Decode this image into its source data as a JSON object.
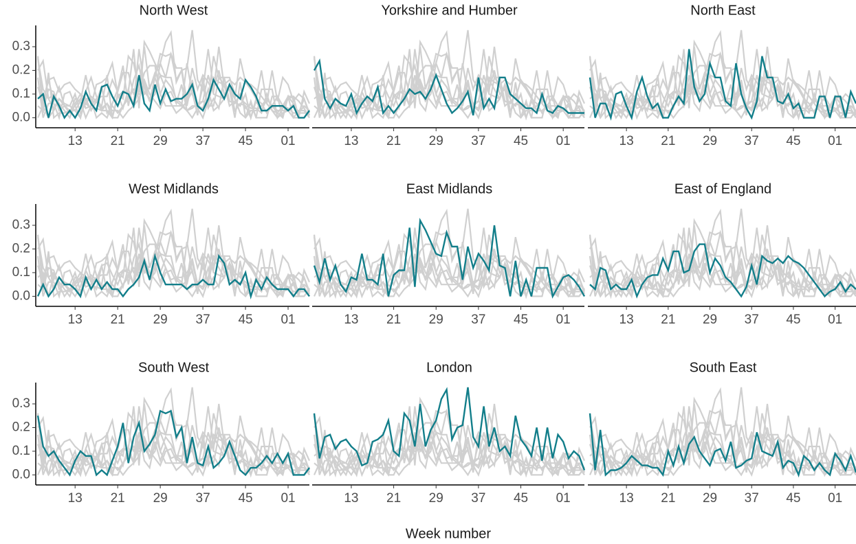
{
  "chart_data": {
    "type": "line",
    "x_label": "Week number",
    "categories": [
      null,
      null,
      null,
      null,
      null,
      null,
      null,
      "13",
      null,
      null,
      null,
      null,
      null,
      null,
      null,
      "21",
      null,
      null,
      null,
      null,
      null,
      null,
      null,
      "29",
      null,
      null,
      null,
      null,
      null,
      null,
      null,
      "37",
      null,
      null,
      null,
      null,
      null,
      null,
      null,
      "45",
      null,
      null,
      null,
      null,
      null,
      null,
      null,
      "01",
      null,
      null,
      null,
      null
    ],
    "ylim": [
      -0.025,
      0.39
    ],
    "yticks": [
      {
        "value": 0,
        "label": "0.0"
      },
      0.1,
      0.2,
      0.3
    ],
    "color": "#d0d0d0",
    "highlight_color": "#127e8a",
    "series": [
      {
        "name": "North West",
        "values": [
          0.08,
          0.1,
          0.0,
          0.09,
          0.05,
          0.0,
          0.03,
          0.0,
          0.04,
          0.11,
          0.06,
          0.03,
          0.13,
          0.14,
          0.09,
          0.05,
          0.11,
          0.1,
          0.05,
          0.18,
          0.06,
          0.03,
          0.14,
          0.06,
          0.12,
          0.07,
          0.08,
          0.08,
          0.1,
          0.14,
          0.05,
          0.03,
          0.08,
          0.16,
          0.12,
          0.08,
          0.14,
          0.1,
          0.08,
          0.16,
          0.13,
          0.09,
          0.03,
          0.03,
          0.05,
          0.05,
          0.05,
          0.03,
          0.05,
          0.0,
          0.0,
          0.03
        ]
      },
      {
        "name": "Yorkshire and Humber",
        "values": [
          0.2,
          0.24,
          0.08,
          0.04,
          0.08,
          0.06,
          0.05,
          0.1,
          0.02,
          0.06,
          0.09,
          0.07,
          0.13,
          0.02,
          0.05,
          0.02,
          0.05,
          0.08,
          0.12,
          0.1,
          0.11,
          0.08,
          0.12,
          0.18,
          0.12,
          0.06,
          0.02,
          0.04,
          0.07,
          0.11,
          0.01,
          0.17,
          0.04,
          0.08,
          0.04,
          0.17,
          0.17,
          0.1,
          0.08,
          0.06,
          0.04,
          0.04,
          0.02,
          0.1,
          0.03,
          0.02,
          0.05,
          0.04,
          0.02,
          0.02,
          0.02,
          0.02
        ]
      },
      {
        "name": "North East",
        "values": [
          0.17,
          0.0,
          0.06,
          0.06,
          0.0,
          0.1,
          0.11,
          0.05,
          0.0,
          0.11,
          0.17,
          0.09,
          0.04,
          0.06,
          0.0,
          0.0,
          0.05,
          0.09,
          0.06,
          0.29,
          0.13,
          0.07,
          0.1,
          0.23,
          0.17,
          0.17,
          0.07,
          0.05,
          0.23,
          0.1,
          0.04,
          0.0,
          0.07,
          0.26,
          0.17,
          0.17,
          0.07,
          0.06,
          0.1,
          0.04,
          0.06,
          0.0,
          0.0,
          0.0,
          0.09,
          0.09,
          0.0,
          0.09,
          0.09,
          0.0,
          0.11,
          0.06
        ]
      },
      {
        "name": "West Midlands",
        "values": [
          0.0,
          0.05,
          0.0,
          0.03,
          0.08,
          0.05,
          0.05,
          0.03,
          0.0,
          0.08,
          0.03,
          0.07,
          0.03,
          0.06,
          0.03,
          0.03,
          0.0,
          0.03,
          0.05,
          0.08,
          0.15,
          0.07,
          0.17,
          0.1,
          0.05,
          0.05,
          0.05,
          0.05,
          0.03,
          0.05,
          0.05,
          0.07,
          0.05,
          0.05,
          0.17,
          0.14,
          0.05,
          0.07,
          0.05,
          0.1,
          0.0,
          0.07,
          0.03,
          0.08,
          0.05,
          0.03,
          0.03,
          0.03,
          0.0,
          0.03,
          0.03,
          0.0
        ]
      },
      {
        "name": "East Midlands",
        "values": [
          0.13,
          0.06,
          0.16,
          0.07,
          0.13,
          0.05,
          0.02,
          0.08,
          0.07,
          0.18,
          0.07,
          0.07,
          0.05,
          0.18,
          0.0,
          0.09,
          0.11,
          0.11,
          0.29,
          0.04,
          0.32,
          0.28,
          0.23,
          0.18,
          0.17,
          0.27,
          0.21,
          0.21,
          0.07,
          0.21,
          0.12,
          0.18,
          0.15,
          0.11,
          0.3,
          0.13,
          0.12,
          0.0,
          0.15,
          0.0,
          0.07,
          0.0,
          0.12,
          0.12,
          0.12,
          0.0,
          0.04,
          0.08,
          0.09,
          0.07,
          0.04,
          0.0
        ]
      },
      {
        "name": "East of England",
        "values": [
          0.05,
          0.03,
          0.12,
          0.11,
          0.03,
          0.05,
          0.03,
          0.03,
          0.07,
          0.0,
          0.05,
          0.08,
          0.09,
          0.09,
          0.16,
          0.11,
          0.19,
          0.19,
          0.1,
          0.11,
          0.19,
          0.22,
          0.22,
          0.1,
          0.16,
          0.13,
          0.08,
          0.06,
          0.03,
          0.0,
          0.04,
          0.13,
          0.05,
          0.17,
          0.15,
          0.14,
          0.16,
          0.14,
          0.17,
          0.15,
          0.14,
          0.12,
          0.09,
          0.06,
          0.03,
          0.0,
          0.02,
          0.03,
          0.06,
          0.02,
          0.05,
          0.03
        ]
      },
      {
        "name": "South West",
        "values": [
          0.25,
          0.12,
          0.08,
          0.1,
          0.06,
          0.03,
          0.0,
          0.06,
          0.1,
          0.08,
          0.08,
          0.0,
          0.02,
          0.0,
          0.06,
          0.12,
          0.22,
          0.05,
          0.16,
          0.22,
          0.1,
          0.13,
          0.17,
          0.27,
          0.26,
          0.27,
          0.16,
          0.2,
          0.05,
          0.16,
          0.05,
          0.04,
          0.12,
          0.03,
          0.05,
          0.08,
          0.14,
          0.08,
          0.02,
          0.0,
          0.03,
          0.03,
          0.05,
          0.08,
          0.05,
          0.09,
          0.05,
          0.09,
          0.0,
          0.0,
          0.0,
          0.03
        ]
      },
      {
        "name": "London",
        "values": [
          0.26,
          0.07,
          0.16,
          0.17,
          0.11,
          0.14,
          0.15,
          0.12,
          0.1,
          0.04,
          0.05,
          0.14,
          0.15,
          0.17,
          0.23,
          0.1,
          0.08,
          0.26,
          0.23,
          0.12,
          0.3,
          0.12,
          0.19,
          0.23,
          0.32,
          0.36,
          0.15,
          0.2,
          0.21,
          0.37,
          0.16,
          0.12,
          0.29,
          0.12,
          0.2,
          0.1,
          0.12,
          0.08,
          0.25,
          0.15,
          0.12,
          0.08,
          0.2,
          0.06,
          0.2,
          0.07,
          0.17,
          0.14,
          0.07,
          0.1,
          0.08,
          0.02
        ]
      },
      {
        "name": "South East",
        "values": [
          0.26,
          0.02,
          0.19,
          0.0,
          0.02,
          0.02,
          0.03,
          0.05,
          0.08,
          0.06,
          0.04,
          0.04,
          0.03,
          0.03,
          0.0,
          0.1,
          0.04,
          0.12,
          0.05,
          0.13,
          0.16,
          0.1,
          0.07,
          0.04,
          0.1,
          0.11,
          0.06,
          0.14,
          0.03,
          0.04,
          0.06,
          0.07,
          0.18,
          0.1,
          0.09,
          0.08,
          0.14,
          0.03,
          0.06,
          0.05,
          0.0,
          0.08,
          0.06,
          0.02,
          0.05,
          0.02,
          0.0,
          0.09,
          0.06,
          0.02,
          0.08,
          0.01
        ]
      }
    ]
  }
}
